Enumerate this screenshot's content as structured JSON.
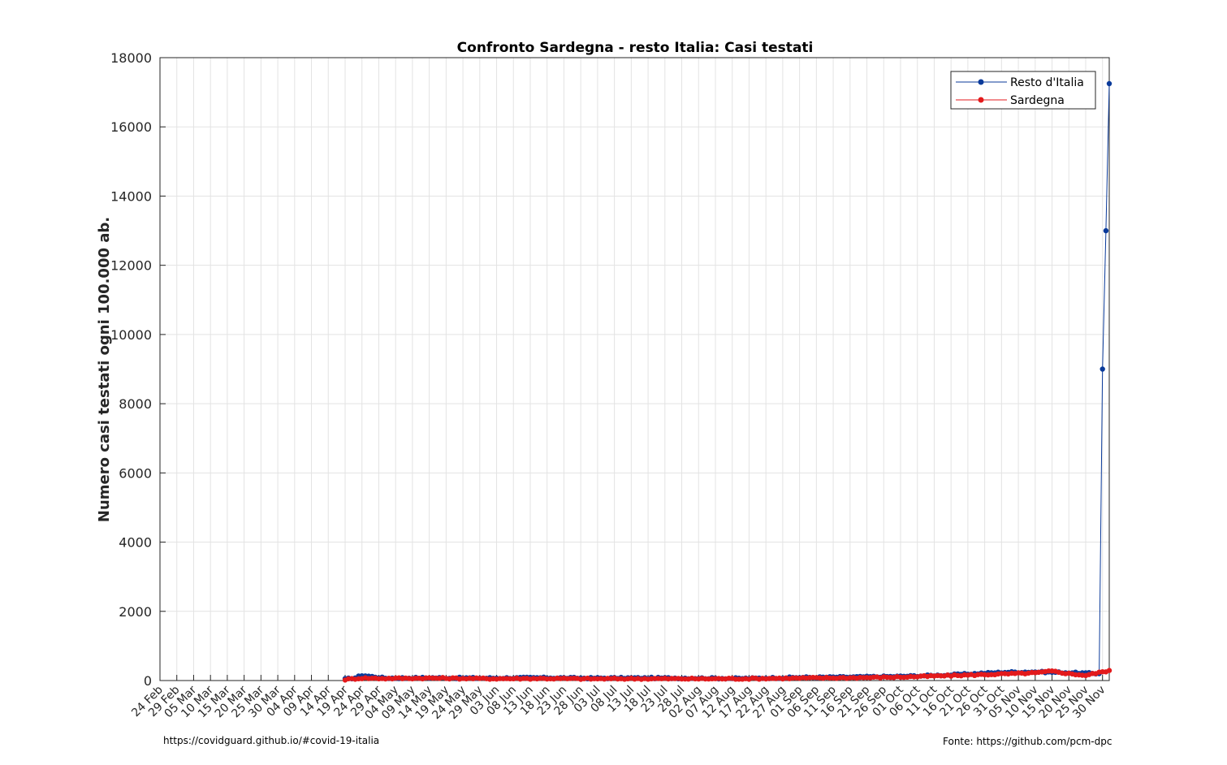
{
  "chart_data": {
    "type": "line",
    "title": "Confronto Sardegna - resto Italia: Casi testati",
    "xlabel": "",
    "ylabel": "Numero casi testati ogni 100.000 ab.",
    "ylim": [
      0,
      18000
    ],
    "yticks": [
      0,
      2000,
      4000,
      6000,
      8000,
      10000,
      12000,
      14000,
      16000,
      18000
    ],
    "date_start": "2020-02-24",
    "date_end": "2020-12-02",
    "xtick_labels": [
      "24 Feb",
      "29 Feb",
      "05 Mar",
      "10 Mar",
      "15 Mar",
      "20 Mar",
      "25 Mar",
      "30 Mar",
      "04 Apr",
      "09 Apr",
      "14 Apr",
      "19 Apr",
      "24 Apr",
      "29 Apr",
      "04 May",
      "09 May",
      "14 May",
      "19 May",
      "24 May",
      "29 May",
      "03 Jun",
      "08 Jun",
      "13 Jun",
      "18 Jun",
      "23 Jun",
      "28 Jun",
      "03 Jul",
      "08 Jul",
      "13 Jul",
      "18 Jul",
      "23 Jul",
      "28 Jul",
      "02 Aug",
      "07 Aug",
      "12 Aug",
      "17 Aug",
      "22 Aug",
      "27 Aug",
      "01 Sep",
      "06 Sep",
      "11 Sep",
      "16 Sep",
      "21 Sep",
      "26 Sep",
      "01 Oct",
      "06 Oct",
      "11 Oct",
      "16 Oct",
      "21 Oct",
      "26 Oct",
      "31 Oct",
      "05 Nov",
      "10 Nov",
      "15 Nov",
      "20 Nov",
      "25 Nov",
      "30 Nov"
    ],
    "grid": true,
    "legend_position": "top-right",
    "series": [
      {
        "name": "Resto d'Italia",
        "color": "#0a3a9a",
        "x": [
          "2020-04-19",
          "2020-04-22",
          "2020-04-24",
          "2020-05-01",
          "2020-05-15",
          "2020-06-01",
          "2020-06-15",
          "2020-07-01",
          "2020-07-15",
          "2020-08-01",
          "2020-08-15",
          "2020-09-01",
          "2020-09-15",
          "2020-10-01",
          "2020-10-15",
          "2020-10-25",
          "2020-11-01",
          "2020-11-10",
          "2020-11-20",
          "2020-11-29",
          "2020-11-30",
          "2020-12-01",
          "2020-12-02"
        ],
        "y": [
          40,
          80,
          150,
          70,
          80,
          70,
          80,
          70,
          75,
          70,
          60,
          90,
          100,
          120,
          160,
          210,
          240,
          250,
          230,
          200,
          9000,
          13000,
          17250
        ]
      },
      {
        "name": "Sardegna",
        "color": "#e31a1c",
        "x": [
          "2020-04-19",
          "2020-04-24",
          "2020-05-01",
          "2020-05-15",
          "2020-06-01",
          "2020-06-15",
          "2020-07-01",
          "2020-07-15",
          "2020-08-01",
          "2020-08-15",
          "2020-09-01",
          "2020-09-15",
          "2020-10-01",
          "2020-10-15",
          "2020-10-25",
          "2020-11-01",
          "2020-11-10",
          "2020-11-15",
          "2020-11-20",
          "2020-11-25",
          "2020-12-02"
        ],
        "y": [
          30,
          70,
          60,
          70,
          55,
          60,
          50,
          55,
          50,
          55,
          70,
          80,
          100,
          140,
          170,
          190,
          220,
          270,
          200,
          150,
          290
        ]
      }
    ]
  },
  "footer": {
    "left_text": "https://covidguard.github.io/#covid-19-italia",
    "right_text": "Fonte: https://github.com/pcm-dpc"
  }
}
